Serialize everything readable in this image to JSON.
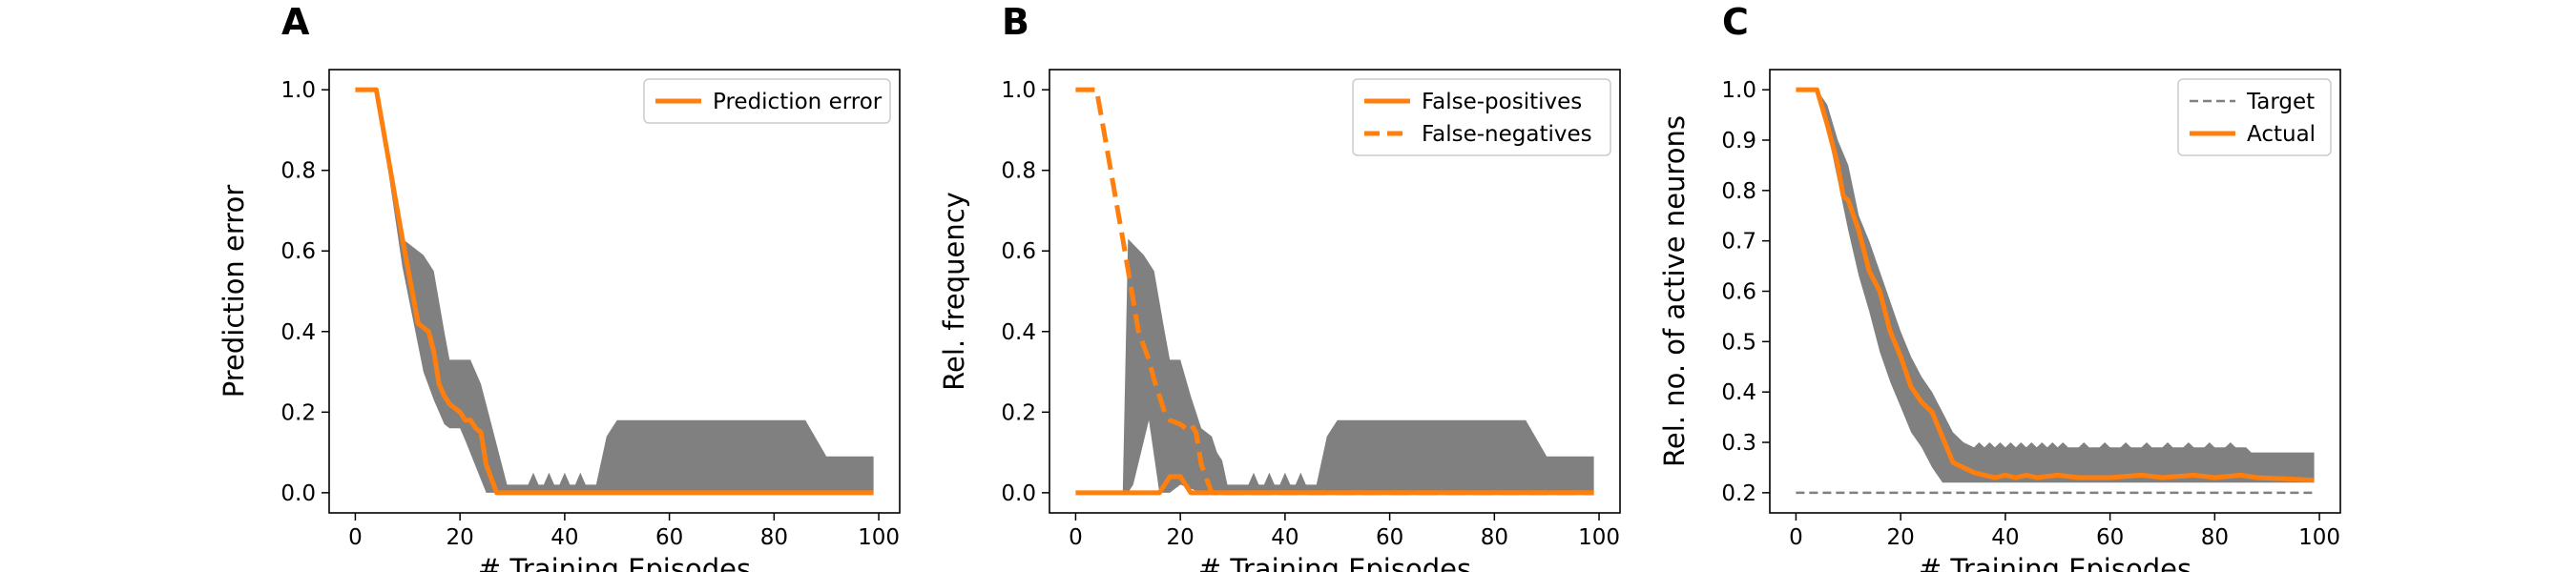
{
  "chart_data": [
    {
      "panel_label": "A",
      "type": "line",
      "xlabel": "# Training Episodes",
      "ylabel": "Prediction error",
      "xlim": [
        -5,
        104
      ],
      "ylim": [
        -0.05,
        1.05
      ],
      "xticks": [
        0,
        20,
        40,
        60,
        80,
        100
      ],
      "yticks": [
        0.0,
        0.2,
        0.4,
        0.6,
        0.8,
        1.0
      ],
      "ytick_labels": [
        "0.0",
        "0.2",
        "0.4",
        "0.6",
        "0.8",
        "1.0"
      ],
      "legend": {
        "position": "top-right"
      },
      "band": {
        "color": "#808080",
        "upper": [
          [
            0,
            1.0
          ],
          [
            4,
            1.0
          ],
          [
            9,
            0.63
          ],
          [
            13,
            0.59
          ],
          [
            15,
            0.55
          ],
          [
            17,
            0.4
          ],
          [
            18,
            0.33
          ],
          [
            22,
            0.33
          ],
          [
            24,
            0.27
          ],
          [
            29,
            0.02
          ],
          [
            31,
            0.02
          ],
          [
            33,
            0.02
          ],
          [
            34,
            0.05
          ],
          [
            35,
            0.02
          ],
          [
            36,
            0.02
          ],
          [
            37,
            0.05
          ],
          [
            38,
            0.02
          ],
          [
            39,
            0.02
          ],
          [
            40,
            0.05
          ],
          [
            41,
            0.02
          ],
          [
            42,
            0.02
          ],
          [
            43,
            0.05
          ],
          [
            44,
            0.02
          ],
          [
            46,
            0.02
          ],
          [
            48,
            0.14
          ],
          [
            50,
            0.18
          ],
          [
            86,
            0.18
          ],
          [
            90,
            0.09
          ],
          [
            99,
            0.09
          ]
        ],
        "lower": [
          [
            99,
            0.0
          ],
          [
            25,
            0.0
          ],
          [
            21,
            0.13
          ],
          [
            20,
            0.16
          ],
          [
            18,
            0.16
          ],
          [
            17,
            0.17
          ],
          [
            15,
            0.23
          ],
          [
            13,
            0.3
          ],
          [
            9,
            0.56
          ],
          [
            4,
            1.0
          ],
          [
            0,
            1.0
          ]
        ]
      },
      "series": [
        {
          "name": "Prediction error",
          "color": "#ff7f0e",
          "style": "solid",
          "points": [
            [
              0,
              1.0
            ],
            [
              4,
              1.0
            ],
            [
              9,
              0.63
            ],
            [
              12,
              0.42
            ],
            [
              14,
              0.4
            ],
            [
              15,
              0.35
            ],
            [
              16,
              0.27
            ],
            [
              17,
              0.24
            ],
            [
              18,
              0.22
            ],
            [
              20,
              0.2
            ],
            [
              21,
              0.18
            ],
            [
              22,
              0.18
            ],
            [
              23,
              0.16
            ],
            [
              24,
              0.15
            ],
            [
              25,
              0.07
            ],
            [
              27,
              0.0
            ],
            [
              99,
              0.0
            ]
          ]
        }
      ]
    },
    {
      "panel_label": "B",
      "type": "line",
      "xlabel": "# Training Episodes",
      "ylabel": "Rel. frequency",
      "xlim": [
        -5,
        104
      ],
      "ylim": [
        -0.05,
        1.05
      ],
      "xticks": [
        0,
        20,
        40,
        60,
        80,
        100
      ],
      "yticks": [
        0.0,
        0.2,
        0.4,
        0.6,
        0.8,
        1.0
      ],
      "ytick_labels": [
        "0.0",
        "0.2",
        "0.4",
        "0.6",
        "0.8",
        "1.0"
      ],
      "legend": {
        "position": "top-right"
      },
      "band": {
        "color": "#808080",
        "upper": [
          [
            0,
            0.0
          ],
          [
            9,
            0.0
          ],
          [
            10,
            0.63
          ],
          [
            13,
            0.59
          ],
          [
            15,
            0.55
          ],
          [
            17,
            0.4
          ],
          [
            18,
            0.33
          ],
          [
            20,
            0.33
          ],
          [
            22,
            0.24
          ],
          [
            24,
            0.16
          ],
          [
            26,
            0.14
          ],
          [
            27,
            0.1
          ],
          [
            28,
            0.08
          ],
          [
            29,
            0.02
          ],
          [
            31,
            0.02
          ],
          [
            33,
            0.02
          ],
          [
            34,
            0.05
          ],
          [
            35,
            0.02
          ],
          [
            36,
            0.02
          ],
          [
            37,
            0.05
          ],
          [
            38,
            0.02
          ],
          [
            39,
            0.02
          ],
          [
            40,
            0.05
          ],
          [
            41,
            0.02
          ],
          [
            42,
            0.02
          ],
          [
            43,
            0.05
          ],
          [
            44,
            0.02
          ],
          [
            46,
            0.02
          ],
          [
            48,
            0.14
          ],
          [
            50,
            0.18
          ],
          [
            86,
            0.18
          ],
          [
            90,
            0.09
          ],
          [
            99,
            0.09
          ]
        ],
        "lower": [
          [
            99,
            0.0
          ],
          [
            24,
            0.0
          ],
          [
            20,
            0.02
          ],
          [
            18,
            0.0
          ],
          [
            16,
            0.0
          ],
          [
            14,
            0.18
          ],
          [
            11,
            0.02
          ],
          [
            10,
            0.0
          ],
          [
            0,
            0.0
          ]
        ]
      },
      "series": [
        {
          "name": "False-positives",
          "color": "#ff7f0e",
          "style": "solid",
          "points": [
            [
              0,
              0.0
            ],
            [
              16,
              0.0
            ],
            [
              18,
              0.04
            ],
            [
              20,
              0.04
            ],
            [
              22,
              0.0
            ],
            [
              99,
              0.0
            ]
          ]
        },
        {
          "name": "False-negatives",
          "color": "#ff7f0e",
          "style": "dashed",
          "points": [
            [
              0,
              1.0
            ],
            [
              4,
              1.0
            ],
            [
              9,
              0.63
            ],
            [
              12,
              0.4
            ],
            [
              14,
              0.33
            ],
            [
              15,
              0.28
            ],
            [
              17,
              0.2
            ],
            [
              18,
              0.18
            ],
            [
              20,
              0.17
            ],
            [
              21,
              0.16
            ],
            [
              22,
              0.17
            ],
            [
              23,
              0.15
            ],
            [
              24,
              0.07
            ],
            [
              26,
              0.0
            ],
            [
              99,
              0.0
            ]
          ]
        }
      ]
    },
    {
      "panel_label": "C",
      "type": "line",
      "xlabel": "# Training Episodes",
      "ylabel": "Rel. no. of active neurons",
      "xlim": [
        -5,
        104
      ],
      "ylim": [
        0.16,
        1.04
      ],
      "xticks": [
        0,
        20,
        40,
        60,
        80,
        100
      ],
      "yticks": [
        0.2,
        0.3,
        0.4,
        0.5,
        0.6,
        0.7,
        0.8,
        0.9,
        1.0
      ],
      "ytick_labels": [
        "0.2",
        "0.3",
        "0.4",
        "0.5",
        "0.6",
        "0.7",
        "0.8",
        "0.9",
        "1.0"
      ],
      "legend": {
        "position": "top-right"
      },
      "band": {
        "color": "#808080",
        "upper": [
          [
            0,
            1.0
          ],
          [
            4,
            1.0
          ],
          [
            6,
            0.97
          ],
          [
            8,
            0.9
          ],
          [
            10,
            0.85
          ],
          [
            12,
            0.75
          ],
          [
            14,
            0.7
          ],
          [
            16,
            0.64
          ],
          [
            18,
            0.58
          ],
          [
            20,
            0.52
          ],
          [
            22,
            0.47
          ],
          [
            24,
            0.43
          ],
          [
            26,
            0.4
          ],
          [
            28,
            0.36
          ],
          [
            30,
            0.32
          ],
          [
            32,
            0.3
          ],
          [
            34,
            0.29
          ],
          [
            35,
            0.3
          ],
          [
            36,
            0.29
          ],
          [
            37,
            0.3
          ],
          [
            38,
            0.29
          ],
          [
            39,
            0.3
          ],
          [
            40,
            0.29
          ],
          [
            41,
            0.3
          ],
          [
            42,
            0.29
          ],
          [
            43,
            0.3
          ],
          [
            44,
            0.29
          ],
          [
            45,
            0.3
          ],
          [
            46,
            0.29
          ],
          [
            47,
            0.3
          ],
          [
            48,
            0.29
          ],
          [
            49,
            0.3
          ],
          [
            50,
            0.29
          ],
          [
            51,
            0.3
          ],
          [
            52,
            0.29
          ],
          [
            54,
            0.29
          ],
          [
            55,
            0.3
          ],
          [
            56,
            0.29
          ],
          [
            58,
            0.29
          ],
          [
            59,
            0.3
          ],
          [
            60,
            0.29
          ],
          [
            62,
            0.29
          ],
          [
            63,
            0.3
          ],
          [
            64,
            0.29
          ],
          [
            66,
            0.29
          ],
          [
            67,
            0.3
          ],
          [
            68,
            0.29
          ],
          [
            70,
            0.29
          ],
          [
            71,
            0.3
          ],
          [
            72,
            0.29
          ],
          [
            74,
            0.29
          ],
          [
            75,
            0.3
          ],
          [
            76,
            0.29
          ],
          [
            78,
            0.29
          ],
          [
            79,
            0.3
          ],
          [
            80,
            0.29
          ],
          [
            82,
            0.29
          ],
          [
            83,
            0.3
          ],
          [
            84,
            0.29
          ],
          [
            86,
            0.29
          ],
          [
            87,
            0.28
          ],
          [
            99,
            0.28
          ]
        ],
        "lower": [
          [
            99,
            0.22
          ],
          [
            86,
            0.22
          ],
          [
            80,
            0.22
          ],
          [
            70,
            0.22
          ],
          [
            60,
            0.22
          ],
          [
            50,
            0.22
          ],
          [
            40,
            0.22
          ],
          [
            30,
            0.22
          ],
          [
            28,
            0.22
          ],
          [
            26,
            0.25
          ],
          [
            24,
            0.29
          ],
          [
            22,
            0.32
          ],
          [
            20,
            0.37
          ],
          [
            18,
            0.42
          ],
          [
            16,
            0.48
          ],
          [
            14,
            0.56
          ],
          [
            12,
            0.63
          ],
          [
            10,
            0.72
          ],
          [
            8,
            0.82
          ],
          [
            6,
            0.92
          ],
          [
            4,
            1.0
          ],
          [
            0,
            1.0
          ]
        ]
      },
      "series": [
        {
          "name": "Target",
          "color": "#808080",
          "style": "dashed",
          "thin": true,
          "points": [
            [
              0,
              0.2
            ],
            [
              99,
              0.2
            ]
          ]
        },
        {
          "name": "Actual",
          "color": "#ff7f0e",
          "style": "solid",
          "points": [
            [
              0,
              1.0
            ],
            [
              4,
              1.0
            ],
            [
              6,
              0.93
            ],
            [
              8,
              0.85
            ],
            [
              9,
              0.79
            ],
            [
              10,
              0.78
            ],
            [
              12,
              0.72
            ],
            [
              14,
              0.64
            ],
            [
              16,
              0.6
            ],
            [
              18,
              0.52
            ],
            [
              20,
              0.47
            ],
            [
              22,
              0.41
            ],
            [
              24,
              0.38
            ],
            [
              26,
              0.36
            ],
            [
              28,
              0.31
            ],
            [
              30,
              0.26
            ],
            [
              32,
              0.25
            ],
            [
              34,
              0.24
            ],
            [
              36,
              0.235
            ],
            [
              38,
              0.23
            ],
            [
              40,
              0.235
            ],
            [
              42,
              0.23
            ],
            [
              44,
              0.235
            ],
            [
              46,
              0.23
            ],
            [
              50,
              0.235
            ],
            [
              54,
              0.23
            ],
            [
              60,
              0.23
            ],
            [
              66,
              0.235
            ],
            [
              70,
              0.23
            ],
            [
              76,
              0.235
            ],
            [
              80,
              0.23
            ],
            [
              85,
              0.235
            ],
            [
              88,
              0.23
            ],
            [
              99,
              0.225
            ]
          ]
        }
      ]
    }
  ]
}
